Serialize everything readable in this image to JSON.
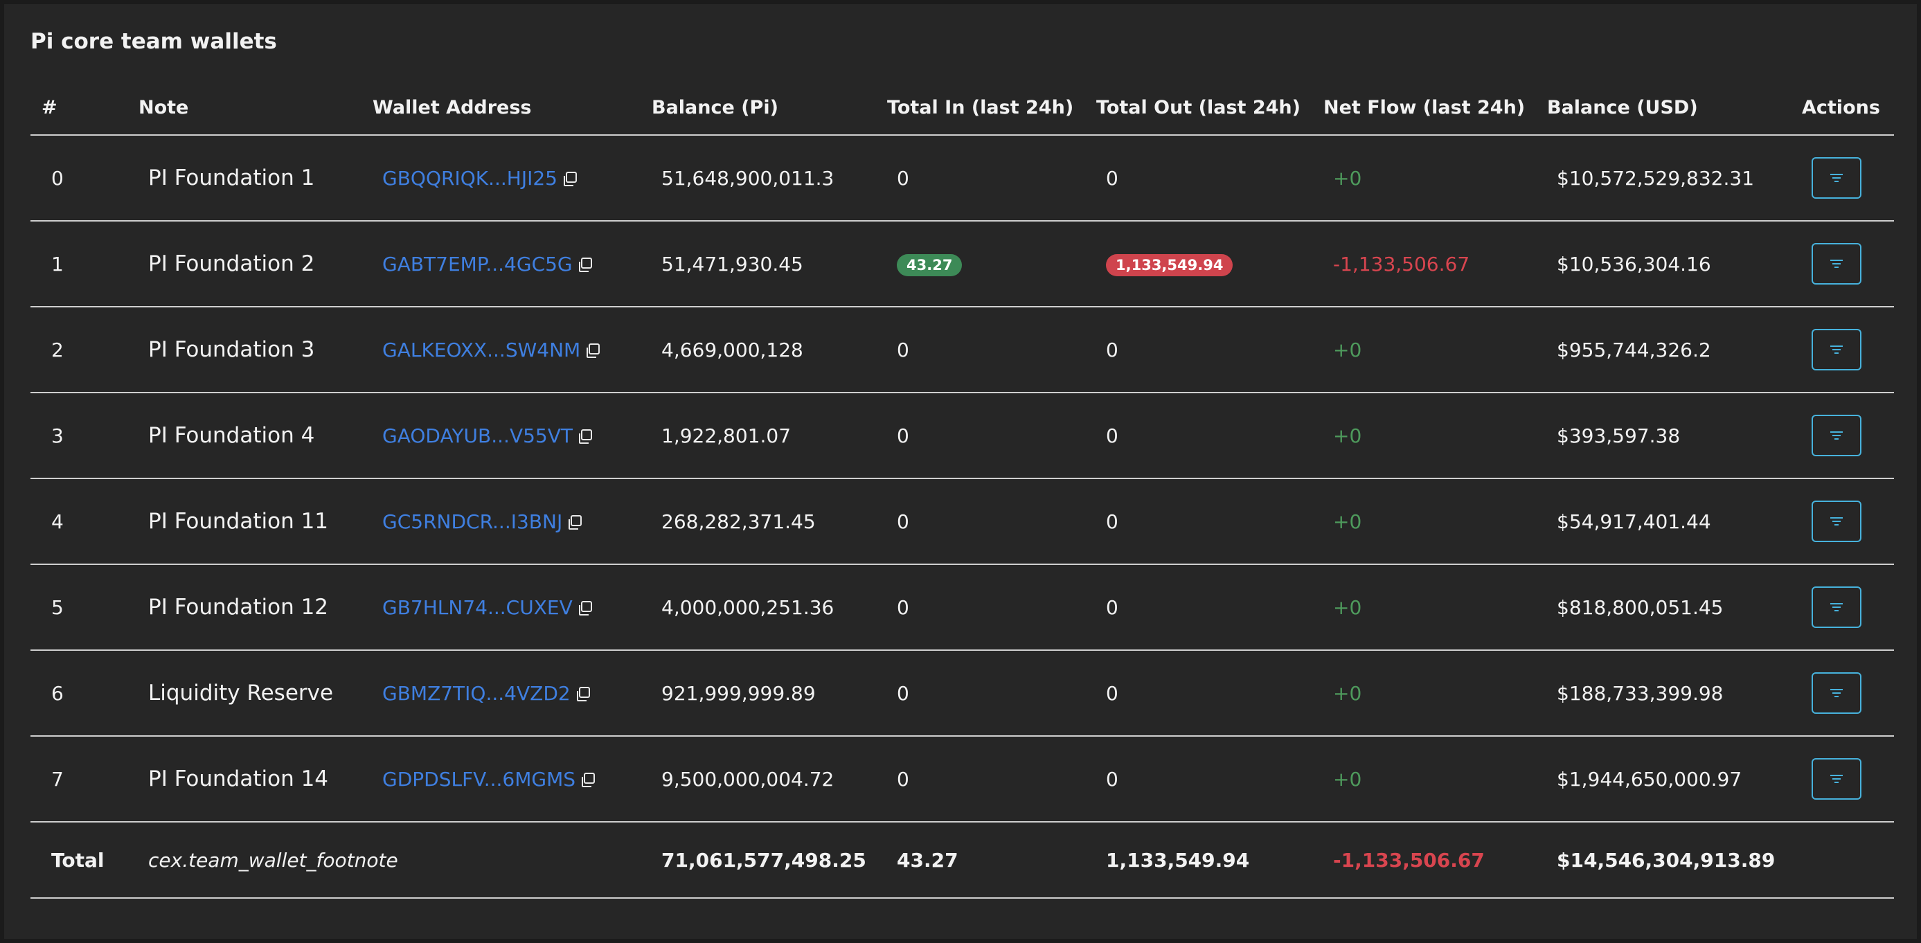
{
  "title": "Pi core team wallets",
  "columns": [
    "#",
    "Note",
    "Wallet Address",
    "Balance (Pi)",
    "Total In (last 24h)",
    "Total Out (last 24h)",
    "Net Flow (last 24h)",
    "Balance (USD)",
    "Actions"
  ],
  "rows": [
    {
      "index": "0",
      "note": "PI Foundation 1",
      "wallet": "GBQQRIQK...HJI25",
      "balance": "51,648,900,011.3",
      "total_in": "0",
      "total_out": "0",
      "net_flow": "+0",
      "balance_usd": "$10,572,529,832.31"
    },
    {
      "index": "1",
      "note": "PI Foundation 2",
      "wallet": "GABT7EMP...4GC5G",
      "balance": "51,471,930.45",
      "total_in": "43.27",
      "total_out": "1,133,549.94",
      "net_flow": "-1,133,506.67",
      "balance_usd": "$10,536,304.16"
    },
    {
      "index": "2",
      "note": "PI Foundation 3",
      "wallet": "GALKEOXX...SW4NM",
      "balance": "4,669,000,128",
      "total_in": "0",
      "total_out": "0",
      "net_flow": "+0",
      "balance_usd": "$955,744,326.2"
    },
    {
      "index": "3",
      "note": "PI Foundation 4",
      "wallet": "GAODAYUB...V55VT",
      "balance": "1,922,801.07",
      "total_in": "0",
      "total_out": "0",
      "net_flow": "+0",
      "balance_usd": "$393,597.38"
    },
    {
      "index": "4",
      "note": "PI Foundation 11",
      "wallet": "GC5RNDCR...I3BNJ",
      "balance": "268,282,371.45",
      "total_in": "0",
      "total_out": "0",
      "net_flow": "+0",
      "balance_usd": "$54,917,401.44"
    },
    {
      "index": "5",
      "note": "PI Foundation 12",
      "wallet": "GB7HLN74...CUXEV",
      "balance": "4,000,000,251.36",
      "total_in": "0",
      "total_out": "0",
      "net_flow": "+0",
      "balance_usd": "$818,800,051.45"
    },
    {
      "index": "6",
      "note": "Liquidity Reserve",
      "wallet": "GBMZ7TIQ...4VZD2",
      "balance": "921,999,999.89",
      "total_in": "0",
      "total_out": "0",
      "net_flow": "+0",
      "balance_usd": "$188,733,399.98"
    },
    {
      "index": "7",
      "note": "PI Foundation 14",
      "wallet": "GDPDSLFV...6MGMS",
      "balance": "9,500,000,004.72",
      "total_in": "0",
      "total_out": "0",
      "net_flow": "+0",
      "balance_usd": "$1,944,650,000.97"
    }
  ],
  "total": {
    "label": "Total",
    "footnote": "cex.team_wallet_footnote",
    "balance": "71,061,577,498.25",
    "total_in": "43.27",
    "total_out": "1,133,549.94",
    "net_flow": "-1,133,506.67",
    "balance_usd": "$14,546,304,913.89"
  }
}
